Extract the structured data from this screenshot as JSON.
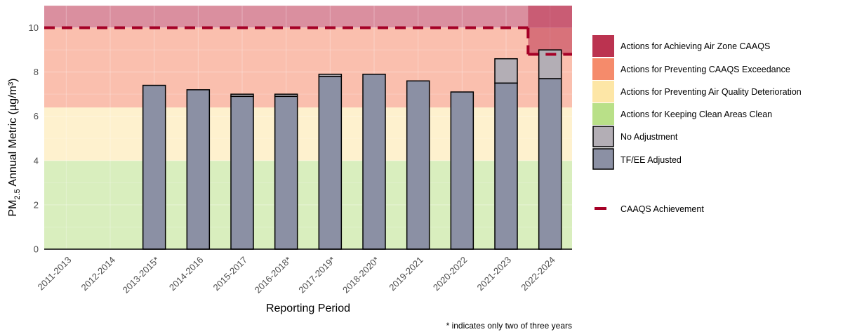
{
  "chart_data": {
    "type": "bar",
    "stacked": true,
    "categories": [
      "2011-2013",
      "2012-2014",
      "2013-2015*",
      "2014-2016",
      "2015-2017",
      "2016-2018*",
      "2017-2019*",
      "2018-2020*",
      "2019-2021",
      "2020-2022",
      "2021-2023",
      "2022-2024"
    ],
    "series": [
      {
        "name": "TF/EE Adjusted",
        "color": "#8b90a4",
        "values": [
          null,
          null,
          7.4,
          7.2,
          6.9,
          6.9,
          7.8,
          7.9,
          7.6,
          7.1,
          7.5,
          7.7
        ]
      },
      {
        "name": "No Adjustment",
        "color": "#b3aeb5",
        "totals": [
          null,
          null,
          7.4,
          7.2,
          7.0,
          7.0,
          7.9,
          7.9,
          7.6,
          7.1,
          8.6,
          9.0
        ]
      }
    ],
    "management_levels": [
      {
        "name": "Actions for Keeping Clean Areas Clean",
        "color": "#b9e088",
        "from": 0,
        "to": 4
      },
      {
        "name": "Actions for Preventing Air Quality Deterioration",
        "color": "#fde6a6",
        "from": 4,
        "to": 6.4
      },
      {
        "name": "Actions for Preventing CAAQS Exceedance",
        "color": "#f58b6b",
        "from": 6.4,
        "to": 10
      },
      {
        "name": "Actions for Achieving Air Zone CAAQS",
        "color": "#bb3350",
        "from": 10,
        "to": 11
      }
    ],
    "caaqs_achievement": {
      "name": "CAAQS Achievement",
      "color": "#a50026",
      "segments": [
        {
          "from": "2011-2013",
          "to": "2021-2023",
          "value": 10
        },
        {
          "from": "2022-2024",
          "to": "2022-2024",
          "value": 8.8
        }
      ]
    },
    "ylim": [
      0,
      11
    ],
    "yticks": [
      0,
      2,
      4,
      6,
      8,
      10
    ],
    "xlabel": "Reporting Period",
    "ylabel": "PM",
    "ylabel_sub": "2.5",
    "ylabel_rest": " Annual Metric (µg/m³)",
    "legend_position": "right",
    "footnote": "* indicates only two of three years",
    "grid": true
  },
  "legend": {
    "items": [
      {
        "label": "Actions for Achieving Air Zone CAAQS",
        "color": "#bb3350"
      },
      {
        "label": "Actions for Preventing CAAQS Exceedance",
        "color": "#f58b6b"
      },
      {
        "label": "Actions for Preventing Air Quality Deterioration",
        "color": "#fde6a6"
      },
      {
        "label": "Actions for Keeping Clean Areas Clean",
        "color": "#b9e088"
      },
      {
        "label": "No Adjustment",
        "color": "#b3aeb5"
      },
      {
        "label": "TF/EE Adjusted",
        "color": "#8b90a4"
      }
    ],
    "line_item": {
      "label": "CAAQS Achievement",
      "color": "#a50026"
    }
  }
}
